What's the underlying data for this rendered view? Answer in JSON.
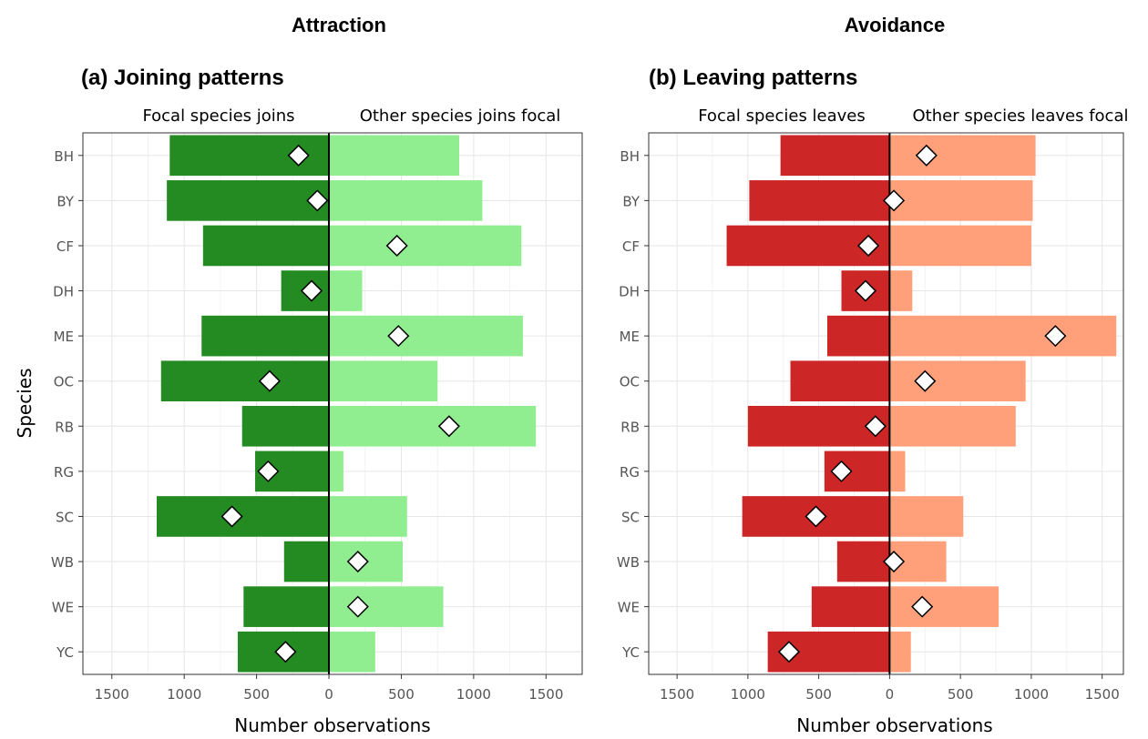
{
  "chart_data": [
    {
      "type": "bar",
      "group_title": "Attraction",
      "title": "(a) Joining patterns",
      "left_label": "Focal species joins",
      "right_label": "Other species joins focal",
      "xlabel": "Number observations",
      "ylabel": "Species",
      "xlim": [
        -1700,
        1750
      ],
      "x_ticks": [
        -1500,
        -1000,
        -500,
        0,
        500,
        1000,
        1500
      ],
      "x_tick_labels": [
        "1500",
        "1000",
        "500",
        "0",
        "500",
        "1000",
        "1500"
      ],
      "categories": [
        "BH",
        "BY",
        "CF",
        "DH",
        "ME",
        "OC",
        "RB",
        "RG",
        "SC",
        "WB",
        "WE",
        "YC"
      ],
      "series": [
        {
          "name": "Focal species joins",
          "color": "#238b22",
          "values": [
            1100,
            1120,
            870,
            330,
            880,
            1160,
            600,
            510,
            1190,
            310,
            590,
            630
          ]
        },
        {
          "name": "Other species joins focal",
          "color": "#90ee90",
          "values": [
            900,
            1060,
            1330,
            230,
            1340,
            750,
            1430,
            100,
            540,
            510,
            790,
            320
          ]
        }
      ],
      "markers": [
        -210,
        -80,
        470,
        -120,
        480,
        -410,
        830,
        -420,
        -670,
        200,
        200,
        -300
      ],
      "grid": true,
      "legend": "none"
    },
    {
      "type": "bar",
      "group_title": "Avoidance",
      "title": "(b) Leaving patterns",
      "left_label": "Focal species leaves",
      "right_label": "Other species leaves focal",
      "xlabel": "Number observations",
      "ylabel": "",
      "xlim": [
        -1700,
        1650
      ],
      "x_ticks": [
        -1500,
        -1000,
        -500,
        0,
        500,
        1000,
        1500
      ],
      "x_tick_labels": [
        "1500",
        "1000",
        "500",
        "0",
        "500",
        "1000",
        "1500"
      ],
      "categories": [
        "BH",
        "BY",
        "CF",
        "DH",
        "ME",
        "OC",
        "RB",
        "RG",
        "SC",
        "WB",
        "WE",
        "YC"
      ],
      "series": [
        {
          "name": "Focal species leaves",
          "color": "#cd2626",
          "values": [
            770,
            990,
            1150,
            340,
            440,
            700,
            1000,
            460,
            1040,
            370,
            550,
            860
          ]
        },
        {
          "name": "Other species leaves focal",
          "color": "#ffa07a",
          "values": [
            1030,
            1010,
            1000,
            160,
            1600,
            960,
            890,
            110,
            520,
            400,
            770,
            150
          ]
        }
      ],
      "markers": [
        260,
        30,
        -150,
        -170,
        1170,
        250,
        -100,
        -340,
        -520,
        30,
        230,
        -710
      ],
      "grid": true,
      "legend": "none"
    }
  ]
}
